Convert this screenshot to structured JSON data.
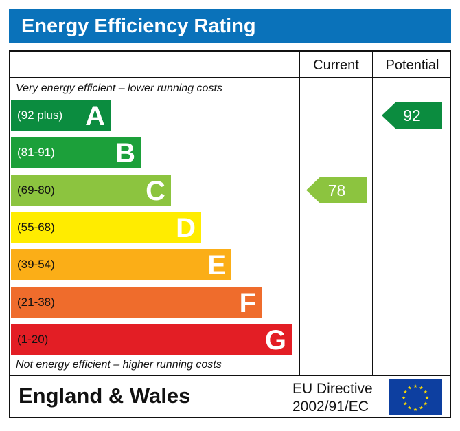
{
  "title": "Energy Efficiency Rating",
  "columns": {
    "current": "Current",
    "potential": "Potential"
  },
  "top_note": "Very energy efficient – lower running costs",
  "bottom_note": "Not energy efficient – higher running costs",
  "footer": {
    "region": "England & Wales",
    "directive_line1": "EU Directive",
    "directive_line2": "2002/91/EC",
    "flag_icon": "eu-flag-icon"
  },
  "chart_data": {
    "type": "bar",
    "bands": [
      {
        "letter": "A",
        "range": "(92 plus)",
        "color": "#0b8c3f"
      },
      {
        "letter": "B",
        "range": "(81-91)",
        "color": "#1ca03a"
      },
      {
        "letter": "C",
        "range": "(69-80)",
        "color": "#8cc43f"
      },
      {
        "letter": "D",
        "range": "(55-68)",
        "color": "#ffec00"
      },
      {
        "letter": "E",
        "range": "(39-54)",
        "color": "#fbae17"
      },
      {
        "letter": "F",
        "range": "(21-38)",
        "color": "#ef6c2c"
      },
      {
        "letter": "G",
        "range": "(1-20)",
        "color": "#e31e25"
      }
    ],
    "current": {
      "value": "78",
      "band": "C",
      "color": "#8cc43f"
    },
    "potential": {
      "value": "92",
      "band": "A",
      "color": "#0b8c3f"
    }
  }
}
